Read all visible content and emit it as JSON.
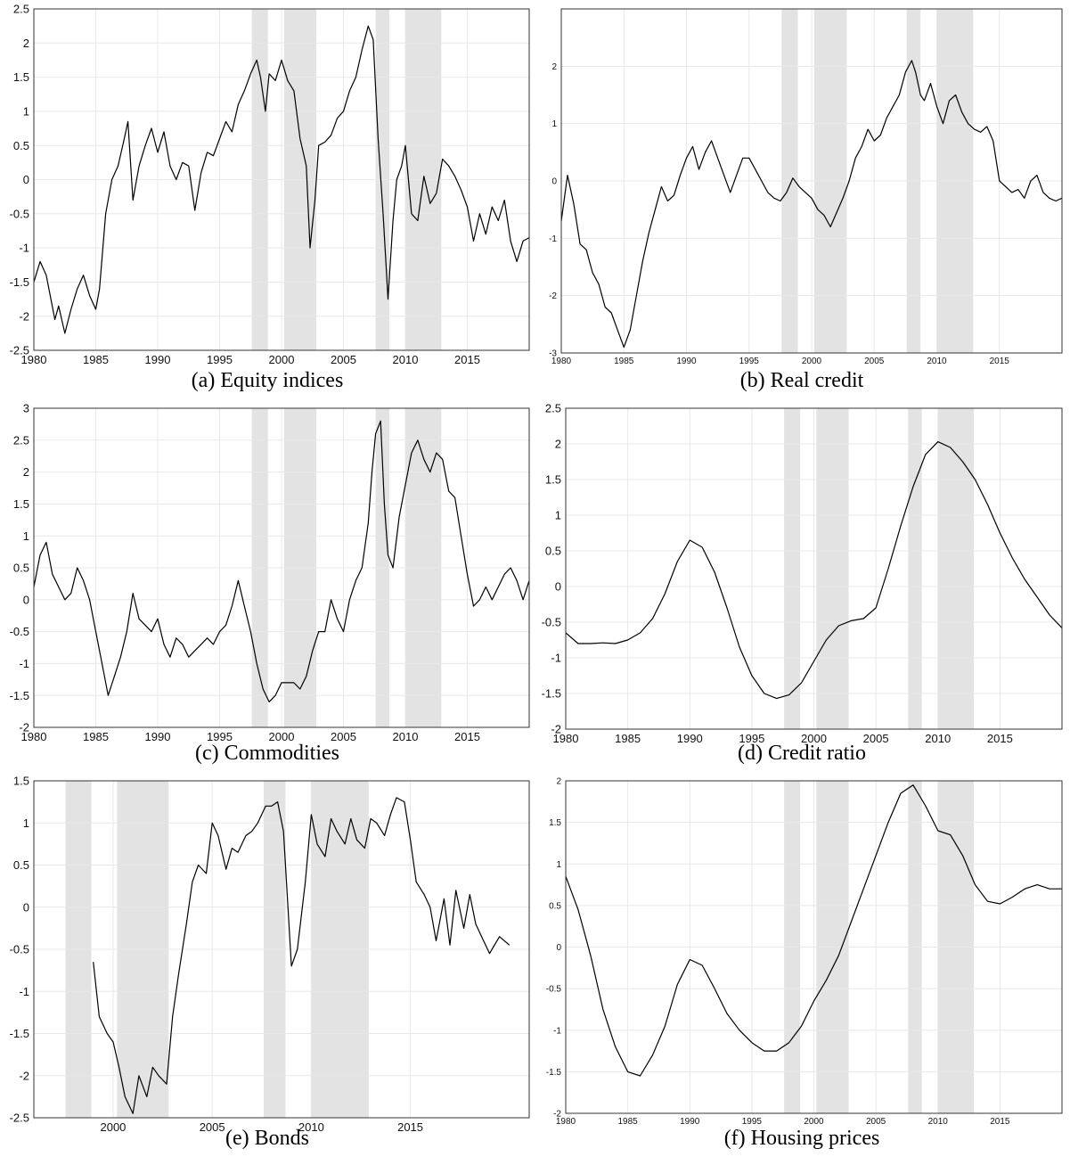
{
  "colors": {
    "shade": "#e3e3e3",
    "line": "#000000",
    "grid": "#e8e8e8",
    "frame": "#333333"
  },
  "recession_periods": [
    [
      1997.6,
      1998.9
    ],
    [
      2000.2,
      2002.8
    ],
    [
      2007.6,
      2008.7
    ],
    [
      2010.0,
      2012.9
    ]
  ],
  "chart_data": [
    {
      "type": "line",
      "caption": "(a) Equity indices",
      "grid": true,
      "xlim": [
        1980,
        2020
      ],
      "ylim": [
        -2.5,
        2.5
      ],
      "xticks": [
        "1980",
        "1985",
        "1990",
        "1995",
        "2000",
        "2005",
        "2010",
        "2015"
      ],
      "yticks": [
        "-2.5",
        "-2",
        "-1.5",
        "-1",
        "-0.5",
        "0",
        "0.5",
        "1",
        "1.5",
        "2",
        "2.5"
      ],
      "series": [
        {
          "x": [
            1980,
            1980.5,
            1981,
            1981.7,
            1982,
            1982.5,
            1983,
            1983.5,
            1984,
            1984.5,
            1985,
            1985.3,
            1985.8,
            1986.3,
            1986.8,
            1987.3,
            1987.6,
            1988,
            1988.5,
            1989,
            1989.5,
            1990,
            1990.5,
            1991,
            1991.5,
            1992,
            1992.5,
            1993,
            1993.5,
            1994,
            1994.5,
            1995,
            1995.5,
            1996,
            1996.5,
            1997,
            1997.5,
            1998,
            1998.3,
            1998.7,
            1999,
            1999.5,
            2000,
            2000.5,
            2001,
            2001.5,
            2002,
            2002.3,
            2002.7,
            2003,
            2003.5,
            2004,
            2004.5,
            2005,
            2005.5,
            2006,
            2006.5,
            2007,
            2007.4,
            2007.8,
            2008.2,
            2008.6,
            2009,
            2009.3,
            2009.7,
            2010,
            2010.5,
            2011,
            2011.5,
            2012,
            2012.5,
            2013,
            2013.5,
            2014,
            2014.5,
            2015,
            2015.5,
            2016,
            2016.5,
            2017,
            2017.5,
            2018,
            2018.5,
            2019,
            2019.5,
            2020
          ],
          "values": [
            -1.5,
            -1.2,
            -1.4,
            -2.05,
            -1.85,
            -2.25,
            -1.9,
            -1.6,
            -1.4,
            -1.7,
            -1.9,
            -1.6,
            -0.5,
            0.0,
            0.2,
            0.6,
            0.85,
            -0.3,
            0.2,
            0.5,
            0.75,
            0.4,
            0.7,
            0.2,
            0.0,
            0.25,
            0.2,
            -0.45,
            0.1,
            0.4,
            0.35,
            0.6,
            0.85,
            0.7,
            1.1,
            1.3,
            1.55,
            1.75,
            1.5,
            1.0,
            1.55,
            1.45,
            1.75,
            1.45,
            1.3,
            0.6,
            0.2,
            -1.0,
            -0.3,
            0.5,
            0.55,
            0.65,
            0.9,
            1.0,
            1.3,
            1.5,
            1.9,
            2.25,
            2.05,
            0.6,
            -0.5,
            -1.75,
            -0.6,
            0.0,
            0.2,
            0.5,
            -0.5,
            -0.6,
            0.05,
            -0.35,
            -0.2,
            0.3,
            0.2,
            0.05,
            -0.15,
            -0.4,
            -0.9,
            -0.5,
            -0.8,
            -0.4,
            -0.6,
            -0.3,
            -0.9,
            -1.2,
            -0.9,
            -0.85
          ]
        }
      ]
    },
    {
      "type": "line",
      "caption": "(b) Real credit",
      "grid": true,
      "xlim": [
        1980,
        2020
      ],
      "ylim": [
        -3,
        3
      ],
      "xticks": [
        "1980",
        "1985",
        "1990",
        "1995",
        "2000",
        "2005",
        "2010",
        "2015"
      ],
      "yticks": [
        "-3",
        "-2",
        "-1",
        "0",
        "1",
        "2"
      ],
      "series": [
        {
          "x": [
            1980,
            1980.5,
            1981,
            1981.5,
            1982,
            1982.5,
            1983,
            1983.5,
            1984,
            1984.5,
            1985,
            1985.5,
            1986,
            1986.5,
            1987,
            1987.5,
            1988,
            1988.5,
            1989,
            1989.5,
            1990,
            1990.5,
            1991,
            1991.5,
            1992,
            1992.5,
            1993,
            1993.5,
            1994,
            1994.5,
            1995,
            1995.5,
            1996,
            1996.5,
            1997,
            1997.5,
            1998,
            1998.5,
            1999,
            1999.5,
            2000,
            2000.5,
            2001,
            2001.5,
            2002,
            2002.5,
            2003,
            2003.5,
            2004,
            2004.5,
            2005,
            2005.5,
            2006,
            2006.5,
            2007,
            2007.5,
            2008,
            2008.3,
            2008.7,
            2009,
            2009.5,
            2010,
            2010.5,
            2011,
            2011.5,
            2012,
            2012.5,
            2013,
            2013.5,
            2014,
            2014.5,
            2015,
            2015.5,
            2016,
            2016.5,
            2017,
            2017.5,
            2018,
            2018.5,
            2019,
            2019.5,
            2020
          ],
          "values": [
            -0.7,
            0.1,
            -0.4,
            -1.1,
            -1.2,
            -1.6,
            -1.8,
            -2.2,
            -2.3,
            -2.6,
            -2.9,
            -2.6,
            -2.0,
            -1.4,
            -0.9,
            -0.5,
            -0.1,
            -0.35,
            -0.25,
            0.1,
            0.4,
            0.6,
            0.2,
            0.5,
            0.7,
            0.4,
            0.1,
            -0.2,
            0.1,
            0.4,
            0.4,
            0.2,
            0.0,
            -0.2,
            -0.3,
            -0.35,
            -0.2,
            0.05,
            -0.1,
            -0.2,
            -0.3,
            -0.5,
            -0.6,
            -0.8,
            -0.55,
            -0.3,
            0.0,
            0.4,
            0.6,
            0.9,
            0.7,
            0.8,
            1.1,
            1.3,
            1.5,
            1.9,
            2.1,
            1.9,
            1.5,
            1.4,
            1.7,
            1.3,
            1.0,
            1.4,
            1.5,
            1.2,
            1.0,
            0.9,
            0.85,
            0.95,
            0.7,
            0.0,
            -0.1,
            -0.2,
            -0.15,
            -0.3,
            0.0,
            0.1,
            -0.2,
            -0.3,
            -0.35,
            -0.3
          ]
        }
      ]
    },
    {
      "type": "line",
      "caption": "(c) Commodities",
      "grid": true,
      "xlim": [
        1980,
        2020
      ],
      "ylim": [
        -2,
        3
      ],
      "xticks": [
        "1980",
        "1985",
        "1990",
        "1995",
        "2000",
        "2005",
        "2010",
        "2015"
      ],
      "yticks": [
        "-2",
        "-1.5",
        "-1",
        "-0.5",
        "0",
        "0.5",
        "1",
        "1.5",
        "2",
        "2.5",
        "3"
      ],
      "series": [
        {
          "x": [
            1980,
            1980.5,
            1981,
            1981.5,
            1982,
            1982.5,
            1983,
            1983.5,
            1984,
            1984.5,
            1985,
            1985.5,
            1986,
            1986.5,
            1987,
            1987.5,
            1988,
            1988.5,
            1989,
            1989.5,
            1990,
            1990.5,
            1991,
            1991.5,
            1992,
            1992.5,
            1993,
            1993.5,
            1994,
            1994.5,
            1995,
            1995.5,
            1996,
            1996.5,
            1997,
            1997.5,
            1998,
            1998.5,
            1999,
            1999.5,
            2000,
            2000.5,
            2001,
            2001.5,
            2002,
            2002.5,
            2003,
            2003.5,
            2004,
            2004.5,
            2005,
            2005.5,
            2006,
            2006.5,
            2007,
            2007.3,
            2007.6,
            2008,
            2008.3,
            2008.6,
            2009,
            2009.5,
            2010,
            2010.5,
            2011,
            2011.5,
            2012,
            2012.5,
            2013,
            2013.5,
            2014,
            2014.5,
            2015,
            2015.5,
            2016,
            2016.5,
            2017,
            2017.5,
            2018,
            2018.5,
            2019,
            2019.5,
            2020
          ],
          "values": [
            0.2,
            0.7,
            0.9,
            0.4,
            0.2,
            0.0,
            0.1,
            0.5,
            0.3,
            0.0,
            -0.5,
            -1.0,
            -1.5,
            -1.2,
            -0.9,
            -0.5,
            0.1,
            -0.3,
            -0.4,
            -0.5,
            -0.3,
            -0.7,
            -0.9,
            -0.6,
            -0.7,
            -0.9,
            -0.8,
            -0.7,
            -0.6,
            -0.7,
            -0.5,
            -0.4,
            -0.1,
            0.3,
            -0.1,
            -0.5,
            -1.0,
            -1.4,
            -1.6,
            -1.5,
            -1.3,
            -1.3,
            -1.3,
            -1.4,
            -1.2,
            -0.8,
            -0.5,
            -0.5,
            0.0,
            -0.3,
            -0.5,
            0.0,
            0.3,
            0.5,
            1.2,
            2.0,
            2.6,
            2.8,
            1.5,
            0.7,
            0.5,
            1.3,
            1.8,
            2.3,
            2.5,
            2.2,
            2.0,
            2.3,
            2.2,
            1.7,
            1.6,
            1.0,
            0.4,
            -0.1,
            0.0,
            0.2,
            0.0,
            0.2,
            0.4,
            0.5,
            0.3,
            0.0,
            0.3
          ]
        }
      ]
    },
    {
      "type": "line",
      "caption": "(d) Credit ratio",
      "grid": true,
      "xlim": [
        1980,
        2020
      ],
      "ylim": [
        -2,
        2.5
      ],
      "xticks": [
        "1980",
        "1985",
        "1990",
        "1995",
        "2000",
        "2005",
        "2010",
        "2015"
      ],
      "yticks": [
        "-2",
        "-1.5",
        "-1",
        "-0.5",
        "0",
        "0.5",
        "1",
        "1.5",
        "2",
        "2.5"
      ],
      "series": [
        {
          "x": [
            1980,
            1981,
            1982,
            1983,
            1984,
            1985,
            1986,
            1987,
            1988,
            1989,
            1990,
            1991,
            1992,
            1993,
            1994,
            1995,
            1996,
            1997,
            1998,
            1999,
            2000,
            2001,
            2002,
            2003,
            2004,
            2005,
            2006,
            2007,
            2008,
            2009,
            2010,
            2011,
            2012,
            2013,
            2014,
            2015,
            2016,
            2017,
            2018,
            2019,
            2020
          ],
          "values": [
            -0.65,
            -0.8,
            -0.8,
            -0.79,
            -0.8,
            -0.75,
            -0.65,
            -0.45,
            -0.1,
            0.35,
            0.65,
            0.55,
            0.2,
            -0.3,
            -0.85,
            -1.25,
            -1.5,
            -1.57,
            -1.52,
            -1.35,
            -1.05,
            -0.75,
            -0.55,
            -0.48,
            -0.45,
            -0.3,
            0.25,
            0.85,
            1.4,
            1.85,
            2.03,
            1.95,
            1.75,
            1.5,
            1.15,
            0.75,
            0.4,
            0.1,
            -0.15,
            -0.4,
            -0.58
          ]
        }
      ]
    },
    {
      "type": "line",
      "caption": "(e) Bonds",
      "grid": true,
      "xlim": [
        1996,
        2021
      ],
      "ylim": [
        -2.5,
        1.5
      ],
      "xticks": [
        "2000",
        "2005",
        "2010",
        "2015"
      ],
      "yticks": [
        "-2.5",
        "-2",
        "-1.5",
        "-1",
        "-0.5",
        "0",
        "0.5",
        "1",
        "1.5"
      ],
      "series": [
        {
          "x": [
            1999,
            1999.3,
            1999.7,
            2000,
            2000.3,
            2000.6,
            2001,
            2001.3,
            2001.7,
            2002,
            2002.3,
            2002.7,
            2003,
            2003.3,
            2003.7,
            2004,
            2004.3,
            2004.7,
            2005,
            2005.3,
            2005.7,
            2006,
            2006.3,
            2006.7,
            2007,
            2007.3,
            2007.7,
            2008,
            2008.3,
            2008.6,
            2009,
            2009.3,
            2009.7,
            2010,
            2010.3,
            2010.7,
            2011,
            2011.3,
            2011.7,
            2012,
            2012.3,
            2012.7,
            2013,
            2013.3,
            2013.7,
            2014,
            2014.3,
            2014.7,
            2015,
            2015.3,
            2015.7,
            2016,
            2016.3,
            2016.7,
            2017,
            2017.3,
            2017.7,
            2018,
            2018.3,
            2018.7,
            2019,
            2019.5,
            2020
          ],
          "values": [
            -0.65,
            -1.3,
            -1.5,
            -1.6,
            -1.9,
            -2.25,
            -2.45,
            -2.0,
            -2.25,
            -1.9,
            -2.0,
            -2.1,
            -1.3,
            -0.8,
            -0.2,
            0.3,
            0.5,
            0.4,
            1.0,
            0.85,
            0.45,
            0.7,
            0.65,
            0.85,
            0.9,
            1.0,
            1.2,
            1.2,
            1.25,
            0.9,
            -0.7,
            -0.5,
            0.3,
            1.1,
            0.75,
            0.6,
            1.05,
            0.9,
            0.75,
            1.05,
            0.8,
            0.7,
            1.05,
            1.0,
            0.85,
            1.1,
            1.3,
            1.25,
            0.8,
            0.3,
            0.15,
            0.0,
            -0.4,
            0.1,
            -0.45,
            0.2,
            -0.25,
            0.15,
            -0.2,
            -0.4,
            -0.55,
            -0.35,
            -0.45
          ]
        }
      ]
    },
    {
      "type": "line",
      "caption": "(f) Housing prices",
      "grid": true,
      "xlim": [
        1980,
        2020
      ],
      "ylim": [
        -2,
        2
      ],
      "xticks": [
        "1980",
        "1985",
        "1990",
        "1995",
        "2000",
        "2005",
        "2010",
        "2015"
      ],
      "yticks": [
        "-2",
        "-1.5",
        "-1",
        "-0.5",
        "0",
        "0.5",
        "1",
        "1.5",
        "2"
      ],
      "series": [
        {
          "x": [
            1980,
            1981,
            1982,
            1983,
            1984,
            1985,
            1986,
            1987,
            1988,
            1989,
            1990,
            1991,
            1992,
            1993,
            1994,
            1995,
            1996,
            1997,
            1998,
            1999,
            2000,
            2001,
            2002,
            2003,
            2004,
            2005,
            2006,
            2007,
            2008,
            2009,
            2010,
            2011,
            2012,
            2013,
            2014,
            2015,
            2016,
            2017,
            2018,
            2019,
            2020
          ],
          "values": [
            0.85,
            0.45,
            -0.1,
            -0.75,
            -1.2,
            -1.5,
            -1.55,
            -1.3,
            -0.95,
            -0.45,
            -0.15,
            -0.22,
            -0.5,
            -0.8,
            -1.0,
            -1.15,
            -1.25,
            -1.25,
            -1.15,
            -0.95,
            -0.65,
            -0.4,
            -0.1,
            0.3,
            0.7,
            1.1,
            1.5,
            1.85,
            1.95,
            1.7,
            1.4,
            1.35,
            1.1,
            0.75,
            0.55,
            0.52,
            0.6,
            0.7,
            0.75,
            0.7,
            0.7
          ]
        }
      ]
    }
  ]
}
